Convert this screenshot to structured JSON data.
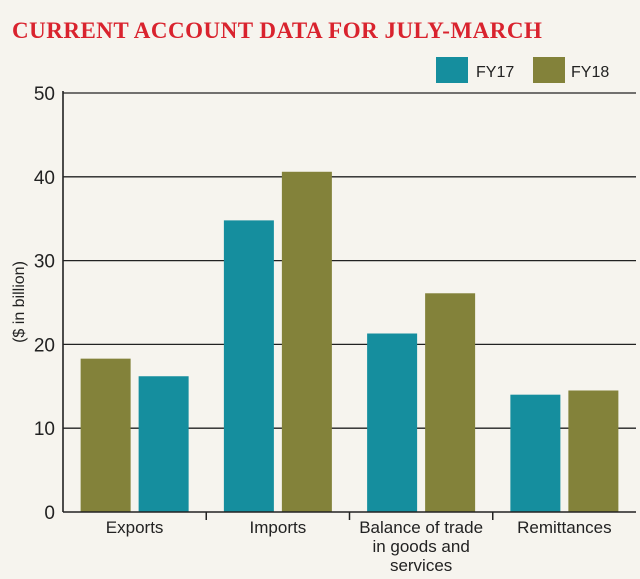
{
  "colors": {
    "fy17": "#158e9e",
    "fy18": "#83823a",
    "title": "#d9232e",
    "grid": "#222222"
  },
  "chart_data": {
    "type": "bar",
    "title": "CURRENT ACCOUNT DATA FOR JULY-MARCH",
    "xlabel": "",
    "ylabel": "($ in billion)",
    "ylim": [
      0,
      50
    ],
    "yticks": [
      "0",
      "10",
      "20",
      "30",
      "40",
      "50"
    ],
    "grid": true,
    "legend_position": "top-right",
    "categories": [
      "Exports",
      "Imports",
      "Balance of trade in goods and services",
      "Remittances"
    ],
    "category_lines": [
      [
        "Exports"
      ],
      [
        "Imports"
      ],
      [
        "Balance of trade",
        "in goods and",
        "services"
      ],
      [
        "Remittances"
      ]
    ],
    "series": [
      {
        "name": "FY17",
        "values": [
          16.2,
          34.8,
          21.3,
          14.0
        ]
      },
      {
        "name": "FY18",
        "values": [
          18.3,
          40.6,
          26.1,
          14.5
        ]
      }
    ],
    "bar_order": [
      [
        "FY18",
        "FY17"
      ],
      [
        "FY17",
        "FY18"
      ],
      [
        "FY17",
        "FY18"
      ],
      [
        "FY17",
        "FY18"
      ]
    ]
  }
}
